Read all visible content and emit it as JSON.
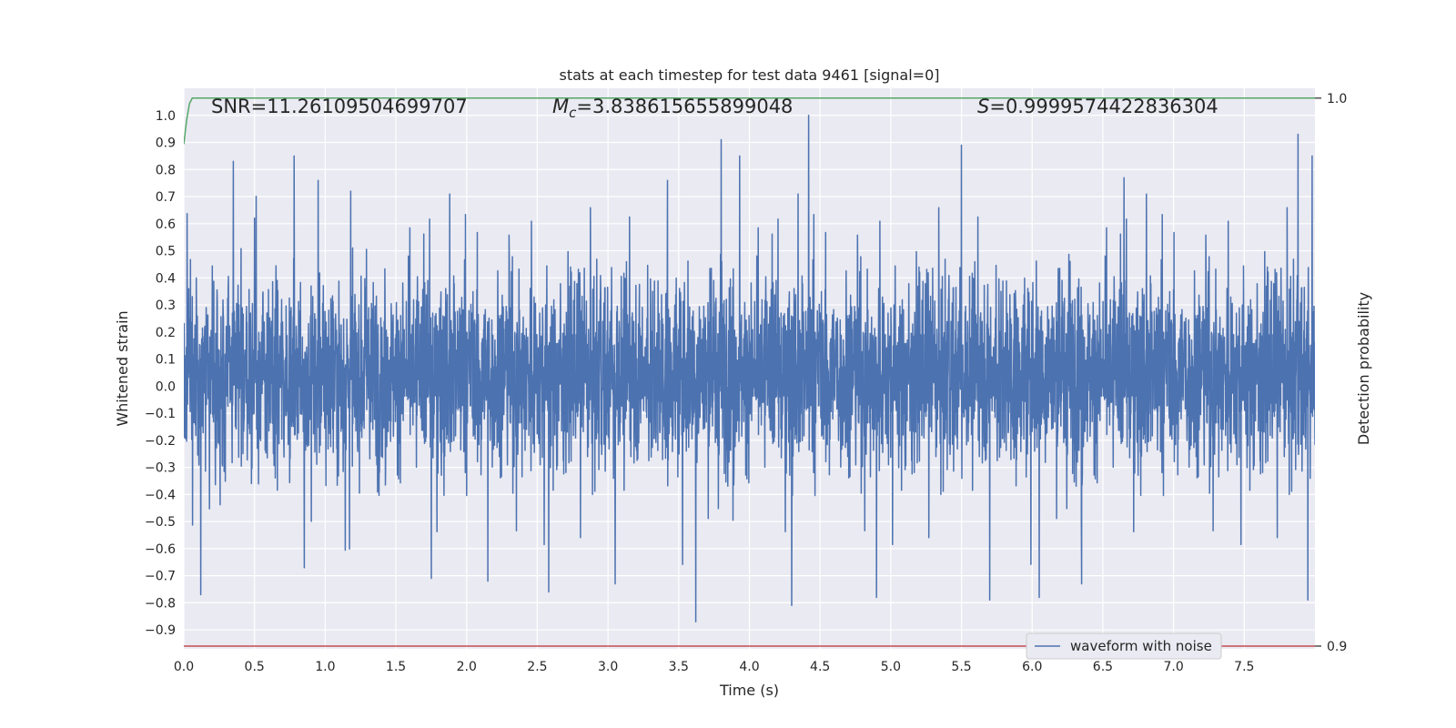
{
  "chart_data": {
    "type": "line",
    "title": "stats at each timestep for test data 9461 [signal=0]",
    "xlabel": "Time (s)",
    "ylabel": "Whitened strain",
    "y2label": "Detection probability",
    "xlim": [
      0,
      8
    ],
    "ylim": [
      -0.97,
      1.1
    ],
    "y2lim": [
      0.8995,
      1.0018
    ],
    "xticks": [
      0.0,
      0.5,
      1.0,
      1.5,
      2.0,
      2.5,
      3.0,
      3.5,
      4.0,
      4.5,
      5.0,
      5.5,
      6.0,
      6.5,
      7.0,
      7.5
    ],
    "yticks": [
      1.0,
      0.9,
      0.8,
      0.7,
      0.6,
      0.5,
      0.4,
      0.3,
      0.2,
      0.1,
      0.0,
      -0.1,
      -0.2,
      -0.3,
      -0.4,
      -0.5,
      -0.6,
      -0.7,
      -0.8,
      -0.9
    ],
    "y2ticks": [
      1.0,
      0.9
    ],
    "grid": true,
    "legend": {
      "placement": "bottom-right",
      "entries": [
        "waveform with noise"
      ]
    },
    "annotations": {
      "snr": "SNR=11.26109504699707",
      "mc_prefix": "M",
      "mc_sub": "c",
      "mc_value": "=3.838615655899048",
      "s_prefix": "S",
      "s_value": "=0.9999574422836304"
    },
    "series": [
      {
        "name": "waveform with noise",
        "color": "#4c72b0",
        "axis": "left",
        "description": "dense whitened-strain noise, mostly within about -0.45..0.55, peaks near 1.0 at t≈4.42 and -0.87 at t≈3.62",
        "peaks": [
          [
            0.12,
            -0.77
          ],
          [
            0.35,
            0.83
          ],
          [
            0.5,
            0.62
          ],
          [
            0.78,
            0.85
          ],
          [
            0.95,
            0.76
          ],
          [
            1.18,
            0.72
          ],
          [
            1.75,
            -0.71
          ],
          [
            2.15,
            -0.72
          ],
          [
            2.58,
            -0.76
          ],
          [
            3.05,
            -0.73
          ],
          [
            3.42,
            0.76
          ],
          [
            3.62,
            -0.87
          ],
          [
            3.8,
            0.91
          ],
          [
            3.93,
            0.85
          ],
          [
            4.42,
            1.0
          ],
          [
            4.3,
            -0.78
          ],
          [
            4.3,
            -0.81
          ],
          [
            4.9,
            -0.78
          ],
          [
            5.5,
            0.89
          ],
          [
            5.7,
            -0.79
          ],
          [
            6.05,
            -0.78
          ],
          [
            6.35,
            -0.73
          ],
          [
            6.65,
            0.77
          ],
          [
            7.88,
            0.93
          ],
          [
            7.95,
            -0.79
          ],
          [
            7.98,
            0.85
          ]
        ]
      },
      {
        "name": "",
        "color": "#55a868",
        "axis": "right",
        "x": [
          0.0,
          0.02,
          0.04,
          0.06,
          0.08,
          8.0
        ],
        "y": [
          0.9916,
          0.996,
          0.999,
          1.0,
          1.0,
          1.0
        ]
      },
      {
        "name": "",
        "color": "#c44e52",
        "axis": "right",
        "x": [
          0.0,
          8.0
        ],
        "y": [
          0.9,
          0.9
        ]
      }
    ]
  }
}
